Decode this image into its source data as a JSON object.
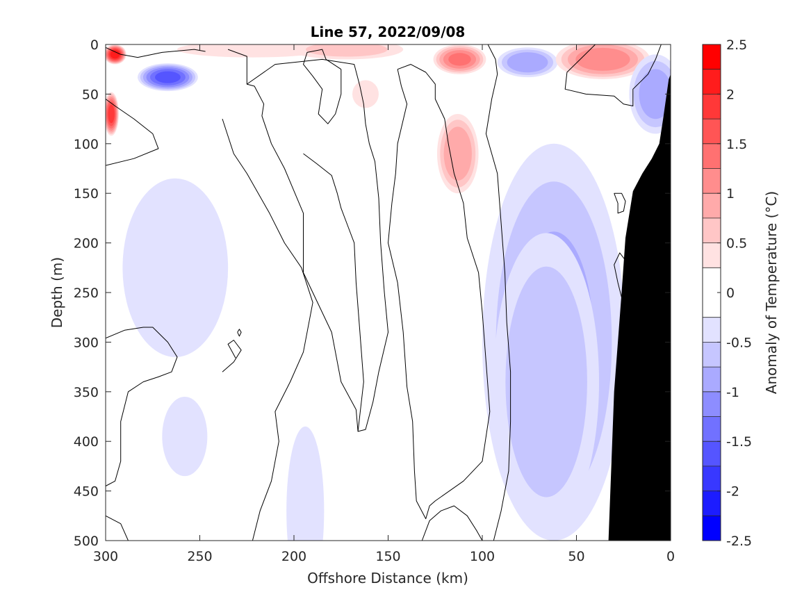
{
  "chart_data": {
    "type": "heatmap",
    "title": "Line 57, 2022/09/08",
    "xlabel": "Offshore Distance (km)",
    "ylabel": "Depth (m)",
    "xlim": [
      300,
      0
    ],
    "ylim": [
      0,
      500
    ],
    "x_reversed": true,
    "y_reversed": true,
    "x_ticks": [
      300,
      250,
      200,
      150,
      100,
      50,
      0
    ],
    "x_tick_labels": [
      "300",
      "250",
      "200",
      "150",
      "100",
      "50",
      "0"
    ],
    "y_ticks": [
      0,
      50,
      100,
      150,
      200,
      250,
      300,
      350,
      400,
      450,
      500
    ],
    "y_tick_labels": [
      "0",
      "50",
      "100",
      "150",
      "200",
      "250",
      "300",
      "350",
      "400",
      "450",
      "500"
    ],
    "colorbar": {
      "label": "Anomaly of Temperature (°C)",
      "range": [
        -2.5,
        2.5
      ],
      "ticks": [
        2.5,
        2,
        1.5,
        1,
        0.5,
        0,
        -0.5,
        -1,
        -1.5,
        -2,
        -2.5
      ],
      "tick_labels": [
        "2.5",
        "2",
        "1.5",
        "1",
        "0.5",
        "0",
        "-0.5",
        "-1",
        "-1.5",
        "-2",
        "-2.5"
      ],
      "levels": [
        {
          "range": [
            2.25,
            2.5
          ],
          "color": "#ff0000"
        },
        {
          "range": [
            2.0,
            2.25
          ],
          "color": "#ff1c1c"
        },
        {
          "range": [
            1.75,
            2.0
          ],
          "color": "#ff3838"
        },
        {
          "range": [
            1.5,
            1.75
          ],
          "color": "#ff5555"
        },
        {
          "range": [
            1.25,
            1.5
          ],
          "color": "#ff7171"
        },
        {
          "range": [
            1.0,
            1.25
          ],
          "color": "#ff8d8d"
        },
        {
          "range": [
            0.75,
            1.0
          ],
          "color": "#ffaaaa"
        },
        {
          "range": [
            0.5,
            0.75
          ],
          "color": "#ffc6c6"
        },
        {
          "range": [
            0.25,
            0.5
          ],
          "color": "#ffe2e2"
        },
        {
          "range": [
            -0.25,
            0.25
          ],
          "color": "#ffffff"
        },
        {
          "range": [
            -0.5,
            -0.25
          ],
          "color": "#e2e2ff"
        },
        {
          "range": [
            -0.75,
            -0.5
          ],
          "color": "#c6c6ff"
        },
        {
          "range": [
            -1.0,
            -0.75
          ],
          "color": "#aaaaff"
        },
        {
          "range": [
            -1.25,
            -1.0
          ],
          "color": "#8d8dff"
        },
        {
          "range": [
            -1.5,
            -1.25
          ],
          "color": "#7171ff"
        },
        {
          "range": [
            -1.75,
            -1.5
          ],
          "color": "#5555ff"
        },
        {
          "range": [
            -2.0,
            -1.75
          ],
          "color": "#3838ff"
        },
        {
          "range": [
            -2.25,
            -2.0
          ],
          "color": "#1c1cff"
        },
        {
          "range": [
            -2.5,
            -2.25
          ],
          "color": "#0000ff"
        }
      ]
    },
    "features": [
      {
        "kind": "warm",
        "x": 295,
        "y": 10,
        "rx": 6,
        "ry": 10,
        "peak": 2.3
      },
      {
        "kind": "warm",
        "x": 297,
        "y": 70,
        "rx": 4,
        "ry": 22,
        "peak": 2.0
      },
      {
        "kind": "cool",
        "x": 267,
        "y": 33,
        "rx": 16,
        "ry": 14,
        "peak": -1.7
      },
      {
        "kind": "warm",
        "x": 222,
        "y": 5,
        "rx": 40,
        "ry": 8,
        "peak": 0.6
      },
      {
        "kind": "warm",
        "x": 172,
        "y": 5,
        "rx": 30,
        "ry": 10,
        "peak": 0.7
      },
      {
        "kind": "warm",
        "x": 112,
        "y": 15,
        "rx": 14,
        "ry": 15,
        "peak": 1.4
      },
      {
        "kind": "warm",
        "x": 113,
        "y": 110,
        "rx": 11,
        "ry": 40,
        "peak": 1.1
      },
      {
        "kind": "warm",
        "x": 162,
        "y": 50,
        "rx": 7,
        "ry": 14,
        "peak": 0.4
      },
      {
        "kind": "cool",
        "x": 76,
        "y": 18,
        "rx": 16,
        "ry": 15,
        "peak": -1.1
      },
      {
        "kind": "warm",
        "x": 36,
        "y": 15,
        "rx": 25,
        "ry": 20,
        "peak": 1.3
      },
      {
        "kind": "cool",
        "x": 8,
        "y": 50,
        "rx": 14,
        "ry": 40,
        "peak": -1.0
      },
      {
        "kind": "cool",
        "x": 263,
        "y": 225,
        "rx": 28,
        "ry": 90,
        "peak": -0.4
      },
      {
        "kind": "cool",
        "x": 258,
        "y": 395,
        "rx": 12,
        "ry": 40,
        "peak": -0.4
      },
      {
        "kind": "cool",
        "x": 62,
        "y": 300,
        "rx": 38,
        "ry": 200,
        "peak": -0.9
      },
      {
        "kind": "cool",
        "x": 66,
        "y": 340,
        "rx": 28,
        "ry": 150,
        "peak": -0.8
      },
      {
        "kind": "cool",
        "x": 194,
        "y": 470,
        "rx": 10,
        "ry": 85,
        "peak": -0.4
      }
    ],
    "zero_contours": [
      [
        [
          300,
          122
        ],
        [
          285,
          115
        ],
        [
          272,
          105
        ],
        [
          275,
          90
        ],
        [
          285,
          75
        ],
        [
          295,
          62
        ],
        [
          300,
          55
        ]
      ],
      [
        [
          300,
          3
        ],
        [
          292,
          10
        ],
        [
          283,
          13
        ],
        [
          270,
          8
        ],
        [
          253,
          5
        ],
        [
          247,
          7
        ]
      ],
      [
        [
          235,
          5
        ],
        [
          225,
          12
        ],
        [
          225,
          40
        ],
        [
          221,
          42
        ],
        [
          216,
          60
        ],
        [
          217,
          72
        ],
        [
          212,
          100
        ],
        [
          205,
          125
        ],
        [
          195,
          170
        ],
        [
          195,
          230
        ],
        [
          180,
          290
        ],
        [
          175,
          340
        ],
        [
          167,
          368
        ],
        [
          166,
          390
        ],
        [
          162,
          388
        ],
        [
          158,
          360
        ],
        [
          155,
          330
        ],
        [
          150,
          290
        ],
        [
          152,
          250
        ],
        [
          154,
          200
        ],
        [
          155,
          155
        ],
        [
          157,
          118
        ],
        [
          160,
          100
        ],
        [
          162,
          80
        ],
        [
          163,
          60
        ],
        [
          165,
          42
        ],
        [
          168,
          20
        ],
        [
          185,
          15
        ],
        [
          210,
          20
        ],
        [
          225,
          40
        ]
      ],
      [
        [
          238,
          75
        ],
        [
          232,
          110
        ],
        [
          225,
          130
        ],
        [
          213,
          170
        ],
        [
          205,
          200
        ],
        [
          196,
          225
        ],
        [
          190,
          260
        ],
        [
          195,
          310
        ],
        [
          202,
          340
        ],
        [
          210,
          370
        ],
        [
          208,
          400
        ],
        [
          212,
          440
        ],
        [
          218,
          470
        ],
        [
          222,
          500
        ]
      ],
      [
        [
          195,
          110
        ],
        [
          188,
          120
        ],
        [
          180,
          132
        ],
        [
          177,
          150
        ],
        [
          175,
          165
        ],
        [
          172,
          180
        ],
        [
          168,
          200
        ],
        [
          167,
          240
        ],
        [
          165,
          290
        ],
        [
          163,
          340
        ],
        [
          166,
          390
        ]
      ],
      [
        [
          175,
          25
        ],
        [
          183,
          15
        ],
        [
          185,
          5
        ],
        [
          193,
          8
        ],
        [
          195,
          20
        ],
        [
          190,
          32
        ],
        [
          185,
          45
        ],
        [
          187,
          70
        ],
        [
          182,
          80
        ],
        [
          178,
          70
        ],
        [
          175,
          50
        ],
        [
          175,
          25
        ]
      ],
      [
        [
          145,
          25
        ],
        [
          138,
          20
        ],
        [
          130,
          28
        ],
        [
          125,
          40
        ],
        [
          125,
          55
        ],
        [
          120,
          75
        ],
        [
          118,
          100
        ],
        [
          115,
          130
        ],
        [
          110,
          160
        ],
        [
          108,
          195
        ],
        [
          102,
          230
        ],
        [
          100,
          270
        ],
        [
          98,
          320
        ],
        [
          96,
          370
        ],
        [
          100,
          420
        ],
        [
          110,
          440
        ],
        [
          125,
          460
        ],
        [
          128,
          465
        ],
        [
          130,
          478
        ],
        [
          135,
          460
        ],
        [
          136,
          430
        ],
        [
          137,
          380
        ],
        [
          140,
          345
        ],
        [
          142,
          290
        ],
        [
          145,
          240
        ],
        [
          150,
          200
        ],
        [
          148,
          160
        ],
        [
          146,
          130
        ],
        [
          145,
          100
        ],
        [
          140,
          60
        ],
        [
          143,
          42
        ],
        [
          145,
          25
        ]
      ],
      [
        [
          97,
          0
        ],
        [
          93,
          15
        ],
        [
          92,
          30
        ],
        [
          95,
          55
        ],
        [
          98,
          90
        ],
        [
          92,
          130
        ],
        [
          90,
          180
        ],
        [
          88,
          230
        ],
        [
          87,
          280
        ],
        [
          85,
          330
        ],
        [
          85,
          380
        ],
        [
          86,
          430
        ],
        [
          90,
          470
        ],
        [
          94,
          500
        ]
      ],
      [
        [
          132,
          500
        ],
        [
          128,
          480
        ],
        [
          122,
          470
        ],
        [
          115,
          465
        ],
        [
          108,
          475
        ],
        [
          103,
          490
        ],
        [
          100,
          500
        ]
      ],
      [
        [
          40,
          0
        ],
        [
          48,
          15
        ],
        [
          55,
          28
        ],
        [
          56,
          45
        ],
        [
          45,
          50
        ],
        [
          30,
          52
        ],
        [
          25,
          60
        ],
        [
          20,
          62
        ],
        [
          20,
          45
        ],
        [
          12,
          30
        ],
        [
          8,
          15
        ],
        [
          5,
          0
        ]
      ],
      [
        [
          30,
          150
        ],
        [
          28,
          160
        ],
        [
          28,
          170
        ],
        [
          25,
          168
        ],
        [
          24,
          158
        ],
        [
          26,
          150
        ],
        [
          30,
          150
        ]
      ],
      [
        [
          23,
          220
        ],
        [
          27,
          210
        ],
        [
          30,
          222
        ],
        [
          28,
          240
        ],
        [
          26,
          255
        ],
        [
          22,
          265
        ]
      ],
      [
        [
          230,
          290
        ],
        [
          229,
          294
        ],
        [
          228,
          290
        ],
        [
          229,
          287
        ],
        [
          230,
          290
        ]
      ],
      [
        [
          238,
          330
        ],
        [
          232,
          320
        ],
        [
          228,
          308
        ],
        [
          232,
          298
        ],
        [
          235,
          302
        ],
        [
          231,
          316
        ]
      ],
      [
        [
          300,
          296
        ],
        [
          290,
          288
        ],
        [
          280,
          285
        ],
        [
          275,
          285
        ],
        [
          267,
          300
        ],
        [
          262,
          315
        ],
        [
          265,
          330
        ],
        [
          272,
          335
        ],
        [
          280,
          340
        ],
        [
          288,
          350
        ],
        [
          292,
          380
        ],
        [
          292,
          420
        ],
        [
          295,
          440
        ],
        [
          300,
          445
        ]
      ],
      [
        [
          300,
          475
        ],
        [
          292,
          483
        ],
        [
          288,
          500
        ]
      ]
    ],
    "land_mask": [
      [
        33,
        500
      ],
      [
        30,
        350
      ],
      [
        26,
        250
      ],
      [
        24,
        195
      ],
      [
        20,
        148
      ],
      [
        15,
        130
      ],
      [
        10,
        115
      ],
      [
        6,
        100
      ],
      [
        4,
        75
      ],
      [
        1,
        35
      ],
      [
        0,
        30
      ],
      [
        0,
        500
      ]
    ]
  }
}
